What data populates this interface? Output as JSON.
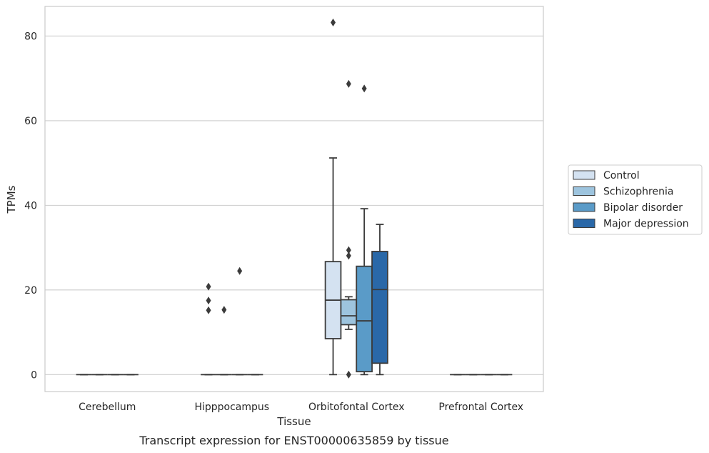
{
  "chart_data": {
    "type": "box",
    "xlabel": "Tissue",
    "ylabel": "TPMs",
    "caption": "Transcript expression for ENST00000635859 by tissue",
    "ylim": [
      -4,
      87
    ],
    "yticks": [
      0,
      20,
      40,
      60,
      80
    ],
    "grid": "horizontal",
    "legend_placement": "right",
    "categories": [
      "Cerebellum",
      "Hipppocampus",
      "Orbitofontal Cortex",
      "Prefrontal Cortex"
    ],
    "series": [
      {
        "name": "Control",
        "color": "#d4e2f1",
        "boxes": [
          {
            "category": "Cerebellum",
            "whisker_low": 0,
            "q1": 0,
            "median": 0,
            "q3": 0,
            "whisker_high": 0,
            "outliers": []
          },
          {
            "category": "Hipppocampus",
            "whisker_low": 0,
            "q1": 0,
            "median": 0,
            "q3": 0,
            "whisker_high": 0,
            "outliers": [
              15.2,
              17.5,
              20.8
            ]
          },
          {
            "category": "Orbitofontal Cortex",
            "whisker_low": 0,
            "q1": 8.5,
            "median": 17.6,
            "q3": 26.7,
            "whisker_high": 51.2,
            "outliers": [
              83.2
            ]
          },
          {
            "category": "Prefrontal Cortex",
            "whisker_low": 0,
            "q1": 0,
            "median": 0,
            "q3": 0,
            "whisker_high": 0,
            "outliers": []
          }
        ]
      },
      {
        "name": "Schizophrenia",
        "color": "#9dc4de",
        "boxes": [
          {
            "category": "Cerebellum",
            "whisker_low": 0,
            "q1": 0,
            "median": 0,
            "q3": 0,
            "whisker_high": 0,
            "outliers": []
          },
          {
            "category": "Hipppocampus",
            "whisker_low": 0,
            "q1": 0,
            "median": 0,
            "q3": 0,
            "whisker_high": 0,
            "outliers": [
              15.3
            ]
          },
          {
            "category": "Orbitofontal Cortex",
            "whisker_low": 10.7,
            "q1": 11.8,
            "median": 13.9,
            "q3": 17.7,
            "whisker_high": 18.4,
            "outliers": [
              28.1,
              29.4,
              68.7,
              0
            ]
          },
          {
            "category": "Prefrontal Cortex",
            "whisker_low": 0,
            "q1": 0,
            "median": 0,
            "q3": 0,
            "whisker_high": 0,
            "outliers": []
          }
        ]
      },
      {
        "name": "Bipolar disorder",
        "color": "#5a9bc8",
        "boxes": [
          {
            "category": "Cerebellum",
            "whisker_low": 0,
            "q1": 0,
            "median": 0,
            "q3": 0,
            "whisker_high": 0,
            "outliers": []
          },
          {
            "category": "Hipppocampus",
            "whisker_low": 0,
            "q1": 0,
            "median": 0,
            "q3": 0,
            "whisker_high": 0,
            "outliers": [
              24.5
            ]
          },
          {
            "category": "Orbitofontal Cortex",
            "whisker_low": 0,
            "q1": 0.7,
            "median": 12.7,
            "q3": 25.6,
            "whisker_high": 39.2,
            "outliers": [
              67.6
            ]
          },
          {
            "category": "Prefrontal Cortex",
            "whisker_low": 0,
            "q1": 0,
            "median": 0,
            "q3": 0,
            "whisker_high": 0,
            "outliers": []
          }
        ]
      },
      {
        "name": "Major depression",
        "color": "#2a68a8",
        "boxes": [
          {
            "category": "Cerebellum",
            "whisker_low": 0,
            "q1": 0,
            "median": 0,
            "q3": 0,
            "whisker_high": 0,
            "outliers": []
          },
          {
            "category": "Hipppocampus",
            "whisker_low": 0,
            "q1": 0,
            "median": 0,
            "q3": 0,
            "whisker_high": 0,
            "outliers": []
          },
          {
            "category": "Orbitofontal Cortex",
            "whisker_low": 0,
            "q1": 2.7,
            "median": 20.1,
            "q3": 29.1,
            "whisker_high": 35.5,
            "outliers": []
          },
          {
            "category": "Prefrontal Cortex",
            "whisker_low": 0,
            "q1": 0,
            "median": 0,
            "q3": 0,
            "whisker_high": 0,
            "outliers": []
          }
        ]
      }
    ]
  }
}
